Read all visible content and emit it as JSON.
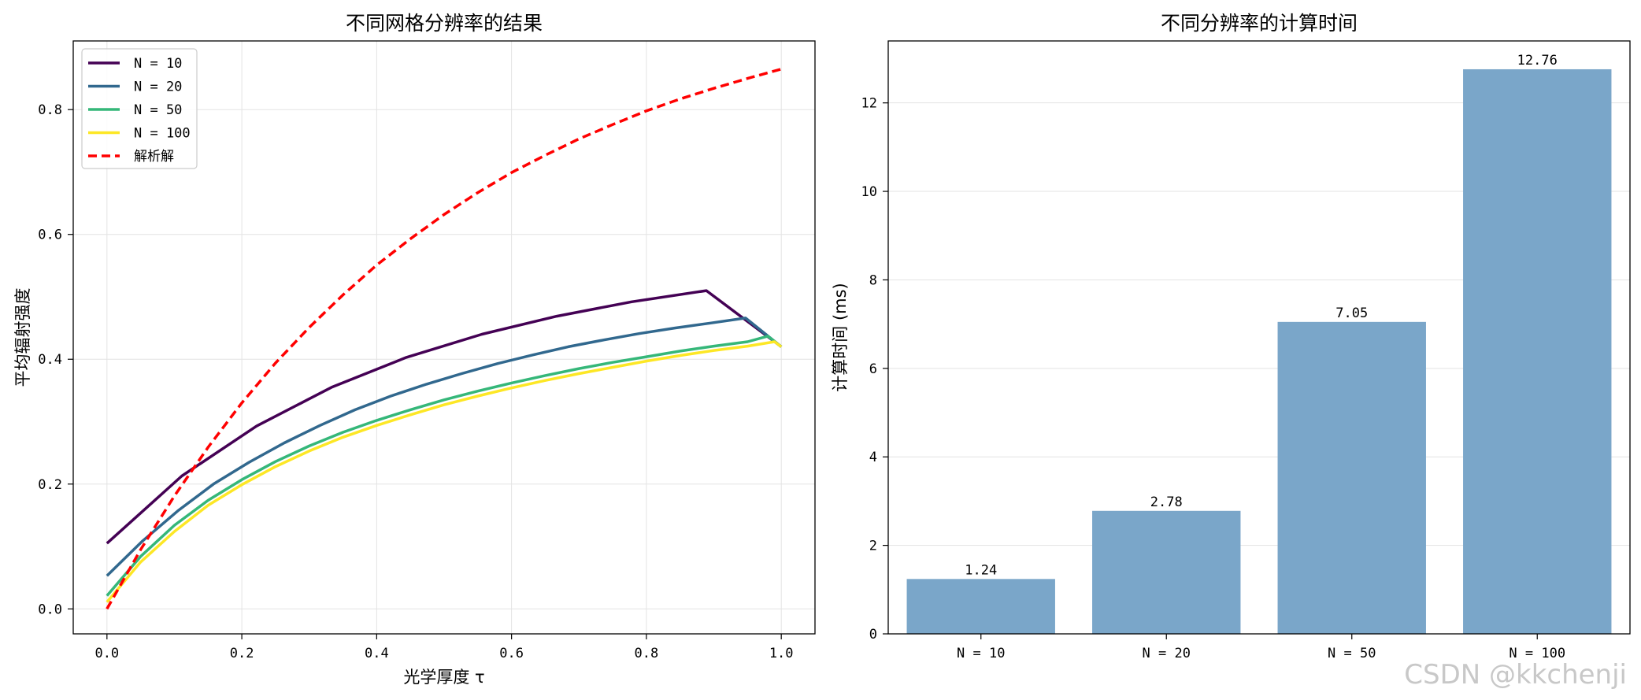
{
  "watermark": "CSDN @kkchenji",
  "chart_data": [
    {
      "type": "line",
      "title": "不同网格分辨率的结果",
      "xlabel": "光学厚度 τ",
      "ylabel": "平均辐射强度",
      "xlim": [
        -0.05,
        1.05
      ],
      "ylim": [
        -0.04,
        0.91
      ],
      "xticks": [
        0.0,
        0.2,
        0.4,
        0.6,
        0.8,
        1.0
      ],
      "xtick_labels": [
        "0.0",
        "0.2",
        "0.4",
        "0.6",
        "0.8",
        "1.0"
      ],
      "yticks": [
        0.0,
        0.2,
        0.4,
        0.6,
        0.8
      ],
      "ytick_labels": [
        "0.0",
        "0.2",
        "0.4",
        "0.6",
        "0.8"
      ],
      "grid": true,
      "legend": "top-left",
      "series": [
        {
          "name": "N = 10",
          "color": "#440154",
          "style": "solid",
          "x": [
            0.0,
            0.111,
            0.222,
            0.333,
            0.444,
            0.556,
            0.667,
            0.778,
            0.889,
            1.0
          ],
          "y": [
            0.105,
            0.213,
            0.293,
            0.355,
            0.403,
            0.44,
            0.469,
            0.492,
            0.51,
            0.42
          ]
        },
        {
          "name": "N = 20",
          "color": "#31688e",
          "style": "solid",
          "x": [
            0.0,
            0.053,
            0.105,
            0.158,
            0.211,
            0.263,
            0.316,
            0.368,
            0.421,
            0.474,
            0.526,
            0.579,
            0.632,
            0.684,
            0.737,
            0.789,
            0.842,
            0.895,
            0.947,
            1.0
          ],
          "y": [
            0.053,
            0.109,
            0.157,
            0.2,
            0.235,
            0.266,
            0.294,
            0.319,
            0.341,
            0.36,
            0.377,
            0.393,
            0.407,
            0.42,
            0.431,
            0.441,
            0.45,
            0.458,
            0.466,
            0.42
          ]
        },
        {
          "name": "N = 50",
          "color": "#35b779",
          "style": "solid",
          "x": [
            0.0,
            0.05,
            0.1,
            0.15,
            0.2,
            0.25,
            0.3,
            0.35,
            0.4,
            0.45,
            0.5,
            0.55,
            0.6,
            0.65,
            0.7,
            0.75,
            0.8,
            0.85,
            0.9,
            0.95,
            0.98,
            1.0
          ],
          "y": [
            0.021,
            0.084,
            0.134,
            0.174,
            0.207,
            0.236,
            0.261,
            0.283,
            0.302,
            0.319,
            0.335,
            0.349,
            0.362,
            0.374,
            0.385,
            0.395,
            0.404,
            0.413,
            0.421,
            0.428,
            0.437,
            0.42
          ]
        },
        {
          "name": "N = 100",
          "color": "#fde725",
          "style": "solid",
          "x": [
            0.0,
            0.05,
            0.1,
            0.15,
            0.2,
            0.25,
            0.3,
            0.35,
            0.4,
            0.45,
            0.5,
            0.55,
            0.6,
            0.65,
            0.7,
            0.75,
            0.8,
            0.85,
            0.9,
            0.95,
            0.99,
            1.0
          ],
          "y": [
            0.011,
            0.075,
            0.124,
            0.166,
            0.199,
            0.228,
            0.253,
            0.275,
            0.294,
            0.311,
            0.327,
            0.341,
            0.354,
            0.366,
            0.377,
            0.387,
            0.397,
            0.406,
            0.414,
            0.421,
            0.428,
            0.42
          ]
        },
        {
          "name": "解析解",
          "color": "#ff0000",
          "style": "dashed",
          "x": [
            0.0,
            0.05,
            0.1,
            0.15,
            0.2,
            0.25,
            0.3,
            0.35,
            0.4,
            0.45,
            0.5,
            0.55,
            0.6,
            0.65,
            0.7,
            0.75,
            0.8,
            0.85,
            0.9,
            0.95,
            1.0
          ],
          "y": [
            0.0,
            0.095,
            0.181,
            0.259,
            0.33,
            0.394,
            0.451,
            0.503,
            0.551,
            0.593,
            0.632,
            0.667,
            0.699,
            0.727,
            0.753,
            0.776,
            0.798,
            0.817,
            0.834,
            0.85,
            0.865
          ]
        }
      ]
    },
    {
      "type": "bar",
      "title": "不同分辨率的计算时间",
      "xlabel": "",
      "ylabel": "计算时间 (ms)",
      "categories": [
        "N = 10",
        "N = 20",
        "N = 50",
        "N = 100"
      ],
      "values": [
        1.24,
        2.78,
        7.05,
        12.76
      ],
      "value_labels": [
        "1.24",
        "2.78",
        "7.05",
        "12.76"
      ],
      "color": "#7aa6c9",
      "ylim": [
        0,
        13.4
      ],
      "yticks": [
        0,
        2,
        4,
        6,
        8,
        10,
        12
      ],
      "ytick_labels": [
        "0",
        "2",
        "4",
        "6",
        "8",
        "10",
        "12"
      ],
      "grid": true
    }
  ]
}
